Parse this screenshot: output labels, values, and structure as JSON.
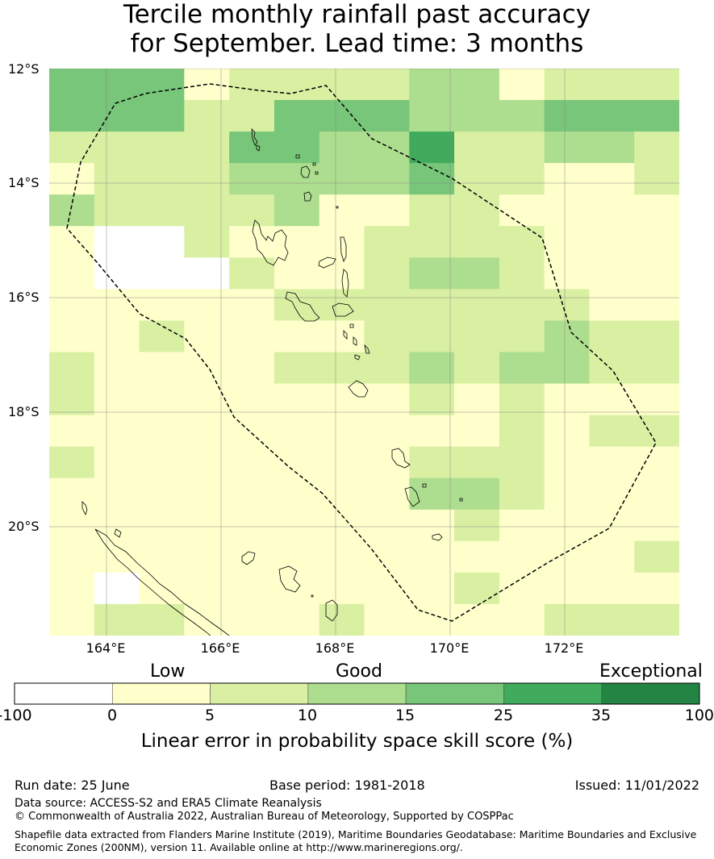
{
  "title": {
    "line1": "Tercile monthly rainfall past accuracy",
    "line2": "for September. Lead time: 3 months"
  },
  "map": {
    "lat_labels": [
      "12°S",
      "14°S",
      "16°S",
      "18°S",
      "20°S"
    ],
    "lon_labels": [
      "164°E",
      "166°E",
      "168°E",
      "170°E",
      "172°E"
    ],
    "lon_range": [
      163.0,
      174.0
    ],
    "lat_range": [
      -21.9,
      -12.0
    ],
    "cell_cols": 14,
    "cell_rows": 18,
    "boundary_style": "dashed",
    "grid": "on",
    "skill_grid_codes": [
      "44412222331222",
      "44422444333444",
      "22224433522332",
      "12223333422112",
      "32222311221111",
      "10021112222111",
      "10002112332111",
      "11111222222211",
      "11211112222322",
      "21111222323322",
      "21111111212111",
      "11111111112122",
      "21111111222111",
      "11111111332111",
      "11111111121111",
      "11111111111112",
      "10111111121111",
      "12211121111222"
    ],
    "skill_grid_note_legend": {
      "0": "-100 to 0",
      "1": "0 to 5",
      "2": "5 to 10",
      "3": "10 to 15",
      "4": "15 to 25",
      "5": "25 to 35",
      "6": "35 to 100"
    }
  },
  "colorbar": {
    "categories": [
      "Low",
      "Good",
      "Exceptional"
    ],
    "ticks": [
      "-100",
      "0",
      "5",
      "10",
      "15",
      "25",
      "35",
      "100"
    ],
    "colors": [
      "#ffffff",
      "#ffffcc",
      "#d9f0a3",
      "#addd8e",
      "#78c679",
      "#41ab5d",
      "#238443"
    ],
    "label": "Linear error in probability space skill score (%)"
  },
  "footer": {
    "run_date": "Run date: 25 June",
    "base_period": "Base period: 1981-2018",
    "issued": "Issued: 11/01/2022",
    "data_source": "Data source: ACCESS-S2 and ERA5 Climate Reanalysis",
    "copyright": "© Commonwealth of Australia 2022, Australian Bureau of Meteorology, Supported by COSPPac",
    "shapefile": "Shapefile data extracted from Flanders Marine Institute (2019), Maritime Boundaries Geodatabase: Maritime Boundaries and Exclusive Economic Zones (200NM), version 11. Available online at http://www.marineregions.org/."
  }
}
